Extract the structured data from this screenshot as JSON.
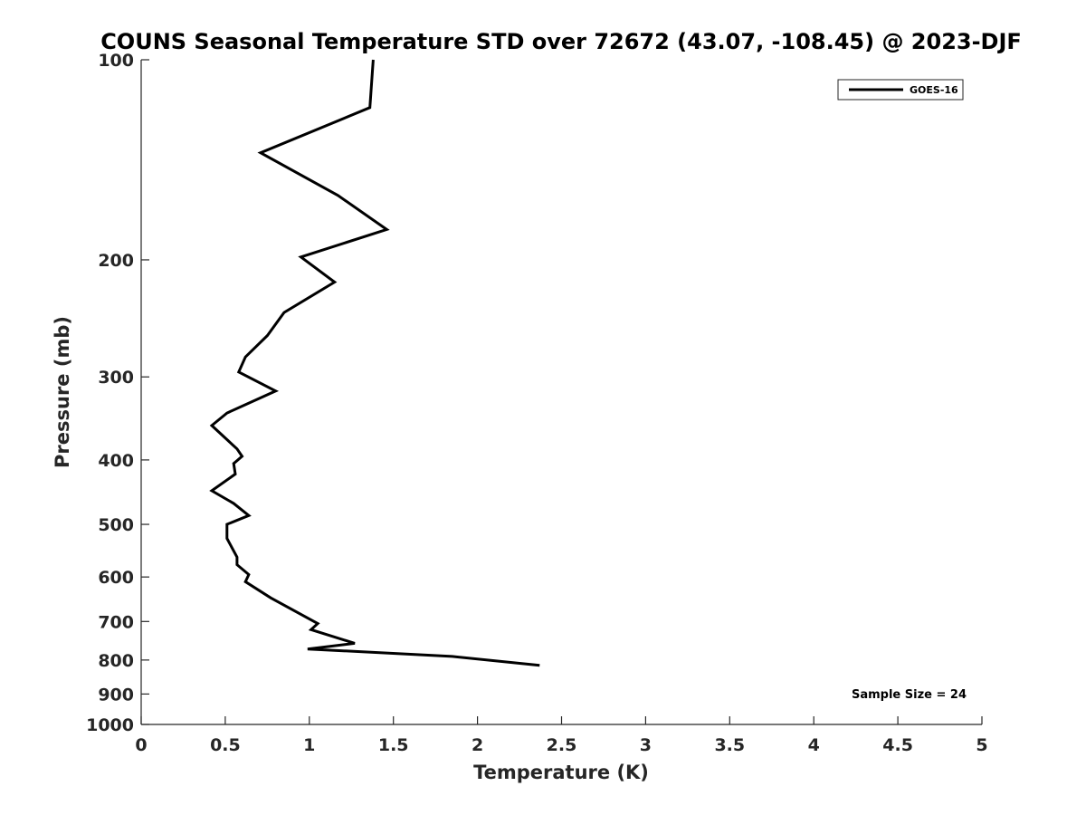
{
  "chart_data": {
    "type": "line",
    "title": "COUNS Seasonal Temperature STD over 72672 (43.07, -108.45) @ 2023-DJF",
    "xlabel": "Temperature (K)",
    "ylabel": "Pressure (mb)",
    "xlim": [
      0,
      5
    ],
    "ylim": [
      1000,
      100
    ],
    "y_scale": "log",
    "y_reversed": true,
    "x_ticks": [
      "0",
      "0.5",
      "1",
      "1.5",
      "2",
      "2.5",
      "3",
      "3.5",
      "4",
      "4.5",
      "5"
    ],
    "y_ticks": [
      "100",
      "200",
      "300",
      "400",
      "500",
      "600",
      "700",
      "800",
      "900",
      "1000"
    ],
    "grid": false,
    "legend_position": "top-right",
    "annotation": "Sample Size = 24",
    "series": [
      {
        "name": "GOES-16",
        "color": "#000000",
        "x": [
          1.38,
          1.36,
          0.71,
          1.17,
          1.46,
          0.95,
          1.15,
          0.85,
          0.75,
          0.62,
          0.58,
          0.8,
          0.51,
          0.42,
          0.57,
          0.6,
          0.55,
          0.56,
          0.42,
          0.55,
          0.64,
          0.51,
          0.51,
          0.57,
          0.57,
          0.64,
          0.62,
          0.77,
          1.05,
          1.01,
          1.27,
          0.99,
          1.85,
          2.37
        ],
        "y": [
          100,
          118,
          138,
          160,
          180,
          198,
          216,
          240,
          260,
          280,
          295,
          315,
          340,
          355,
          385,
          395,
          405,
          420,
          445,
          465,
          485,
          500,
          525,
          560,
          575,
          595,
          610,
          645,
          705,
          720,
          755,
          770,
          790,
          815
        ]
      }
    ]
  }
}
